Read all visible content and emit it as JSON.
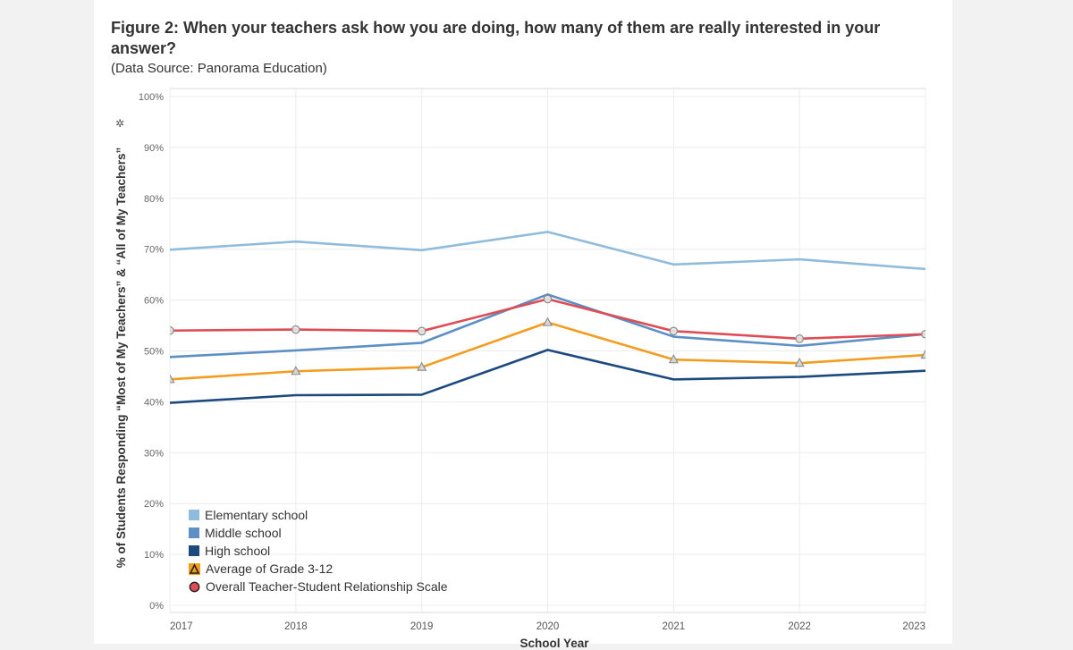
{
  "title": "Figure 2: When your teachers ask how you are doing, how many of them are really interested in your answer?",
  "subtitle": "(Data Source: Panorama Education)",
  "icons": {
    "pin": "pin-icon"
  },
  "chart_data": {
    "type": "line",
    "ylabel": "% of Students Responding “Most of My Teachers” & “All of My Teachers”",
    "xlabel": "School Year",
    "x": [
      "2017",
      "2018",
      "2019",
      "2020",
      "2021",
      "2022",
      "2023"
    ],
    "ylim": [
      0,
      100
    ],
    "yticks": [
      "0%",
      "10%",
      "20%",
      "30%",
      "40%",
      "50%",
      "60%",
      "70%",
      "80%",
      "90%",
      "100%"
    ],
    "grid": true,
    "legend_position": "bottom-left",
    "series": [
      {
        "name": "Elementary school",
        "color": "#8fbbdc",
        "marker": "none",
        "values": [
          69.9,
          71.5,
          69.8,
          73.4,
          67.0,
          68.0,
          66.1
        ]
      },
      {
        "name": "Middle school",
        "color": "#5b8fc5",
        "marker": "none",
        "values": [
          48.8,
          50.1,
          51.6,
          61.1,
          52.8,
          51.0,
          53.3
        ]
      },
      {
        "name": "High school",
        "color": "#1c4a7e",
        "marker": "none",
        "values": [
          39.8,
          41.3,
          41.4,
          50.2,
          44.4,
          44.9,
          46.1
        ]
      },
      {
        "name": "Average of Grade 3-12",
        "color": "#f39c1f",
        "marker": "triangle",
        "values": [
          44.4,
          46.0,
          46.8,
          55.6,
          48.3,
          47.6,
          49.2
        ]
      },
      {
        "name": "Overall Teacher-Student Relationship Scale",
        "color": "#de4d54",
        "marker": "circle",
        "values": [
          54.0,
          54.2,
          53.9,
          60.2,
          53.9,
          52.4,
          53.3
        ]
      }
    ]
  }
}
